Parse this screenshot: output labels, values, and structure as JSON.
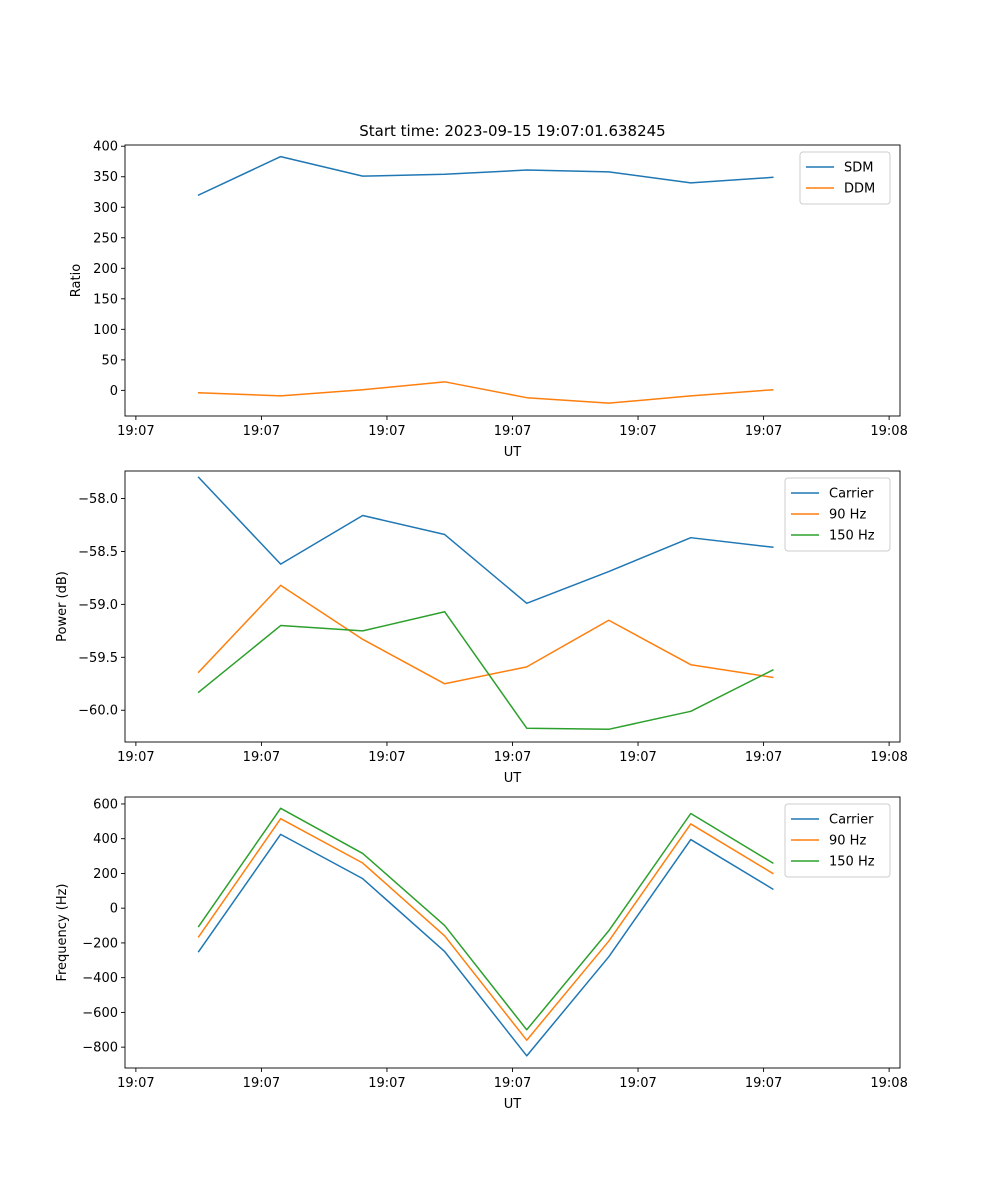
{
  "title": "Start time: 2023-09-15 19:07:01.638245",
  "colors": {
    "series1": "#1f77b4",
    "series2": "#ff7f0e",
    "series3": "#2ca02c",
    "axis": "#000000"
  },
  "chart_data": [
    {
      "type": "line",
      "title": "Start time: 2023-09-15 19:07:01.638245",
      "xlabel": "UT",
      "ylabel": "Ratio",
      "xlim": [
        -0.13,
        9.13
      ],
      "x_ticks": [
        {
          "pos": 0,
          "label": "19:07"
        },
        {
          "pos": 1.5,
          "label": "19:07"
        },
        {
          "pos": 3,
          "label": "19:07"
        },
        {
          "pos": 4.5,
          "label": "19:07"
        },
        {
          "pos": 6,
          "label": "19:07"
        },
        {
          "pos": 7.5,
          "label": "19:07"
        },
        {
          "pos": 9,
          "label": "19:08"
        }
      ],
      "ylim": [
        -42,
        402
      ],
      "y_ticks": [
        0,
        50,
        100,
        150,
        200,
        250,
        300,
        350,
        400
      ],
      "y_tick_labels": [
        "0",
        "50",
        "100",
        "150",
        "200",
        "250",
        "300",
        "350",
        "400"
      ],
      "x": [
        0.75,
        1.73,
        2.71,
        3.69,
        4.67,
        5.65,
        6.63,
        7.61
      ],
      "series": [
        {
          "name": "SDM",
          "color": "#1f77b4",
          "values": [
            320,
            383,
            351,
            354,
            361,
            358,
            340,
            349
          ]
        },
        {
          "name": "DDM",
          "color": "#ff7f0e",
          "values": [
            -4,
            -9,
            1,
            14,
            -12,
            -21,
            -9,
            1
          ]
        }
      ],
      "legend": "top-right"
    },
    {
      "type": "line",
      "title": "",
      "xlabel": "UT",
      "ylabel": "Power (dB)",
      "xlim": [
        -0.13,
        9.13
      ],
      "x_ticks": [
        {
          "pos": 0,
          "label": "19:07"
        },
        {
          "pos": 1.5,
          "label": "19:07"
        },
        {
          "pos": 3,
          "label": "19:07"
        },
        {
          "pos": 4.5,
          "label": "19:07"
        },
        {
          "pos": 6,
          "label": "19:07"
        },
        {
          "pos": 7.5,
          "label": "19:07"
        },
        {
          "pos": 9,
          "label": "19:08"
        }
      ],
      "ylim": [
        -60.3,
        -57.74
      ],
      "y_ticks": [
        -60.0,
        -59.5,
        -59.0,
        -58.5,
        -58.0
      ],
      "y_tick_labels": [
        "−60.0",
        "−59.5",
        "−59.0",
        "−58.5",
        "−58.0"
      ],
      "x": [
        0.75,
        1.73,
        2.71,
        3.69,
        4.67,
        5.65,
        6.63,
        7.61
      ],
      "series": [
        {
          "name": "Carrier",
          "color": "#1f77b4",
          "values": [
            -57.8,
            -58.62,
            -58.16,
            -58.34,
            -58.99,
            -58.69,
            -58.37,
            -58.46
          ]
        },
        {
          "name": "90 Hz",
          "color": "#ff7f0e",
          "values": [
            -59.64,
            -58.82,
            -59.33,
            -59.75,
            -59.59,
            -59.15,
            -59.57,
            -59.69
          ]
        },
        {
          "name": "150 Hz",
          "color": "#2ca02c",
          "values": [
            -59.83,
            -59.2,
            -59.25,
            -59.07,
            -60.17,
            -60.18,
            -60.01,
            -59.62
          ]
        }
      ],
      "legend": "top-right"
    },
    {
      "type": "line",
      "title": "",
      "xlabel": "UT",
      "ylabel": "Frequency (Hz)",
      "xlim": [
        -0.13,
        9.13
      ],
      "x_ticks": [
        {
          "pos": 0,
          "label": "19:07"
        },
        {
          "pos": 1.5,
          "label": "19:07"
        },
        {
          "pos": 3,
          "label": "19:07"
        },
        {
          "pos": 4.5,
          "label": "19:07"
        },
        {
          "pos": 6,
          "label": "19:07"
        },
        {
          "pos": 7.5,
          "label": "19:07"
        },
        {
          "pos": 9,
          "label": "19:08"
        }
      ],
      "ylim": [
        -920,
        640
      ],
      "y_ticks": [
        -800,
        -600,
        -400,
        -200,
        0,
        200,
        400,
        600
      ],
      "y_tick_labels": [
        "−800",
        "−600",
        "−400",
        "−200",
        "0",
        "200",
        "400",
        "600"
      ],
      "x": [
        0.75,
        1.73,
        2.71,
        3.69,
        4.67,
        5.65,
        6.63,
        7.61
      ],
      "series": [
        {
          "name": "Carrier",
          "color": "#1f77b4",
          "values": [
            -250,
            425,
            170,
            -250,
            -850,
            -280,
            395,
            110
          ]
        },
        {
          "name": "90 Hz",
          "color": "#ff7f0e",
          "values": [
            -165,
            515,
            260,
            -160,
            -760,
            -190,
            485,
            200
          ]
        },
        {
          "name": "150 Hz",
          "color": "#2ca02c",
          "values": [
            -105,
            575,
            315,
            -100,
            -700,
            -130,
            545,
            260
          ]
        }
      ],
      "legend": "top-right"
    }
  ]
}
